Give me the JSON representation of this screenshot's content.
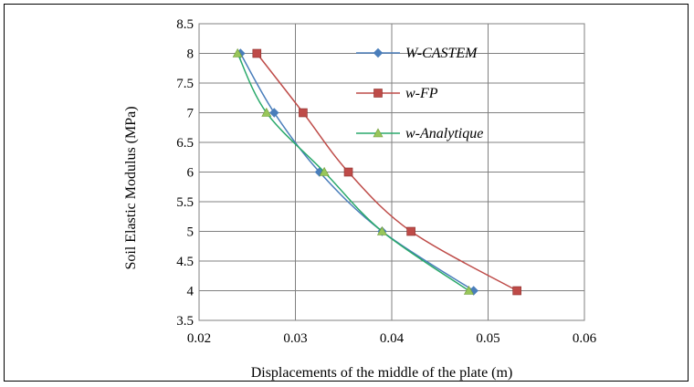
{
  "chart_data": {
    "type": "line",
    "title": "",
    "xlabel": "Displacements of the middle  of the plate (m)",
    "ylabel": "Soil Elastic  Modulus  (MPa)",
    "xlim": [
      0.02,
      0.06
    ],
    "ylim": [
      3.5,
      8.5
    ],
    "xticks": [
      "0.02",
      "0.03",
      "0.04",
      "0.05",
      "0.06"
    ],
    "yticks": [
      "3.5",
      "4",
      "4.5",
      "5",
      "5.5",
      "6",
      "6.5",
      "7",
      "7.5",
      "8",
      "8.5"
    ],
    "grid": true,
    "legend_position": "top-right inside plot",
    "series": [
      {
        "name": "W-CASTEM",
        "color": "#4a7ebb",
        "marker": "diamond",
        "points": [
          [
            0.0243,
            8
          ],
          [
            0.0278,
            7
          ],
          [
            0.0325,
            6
          ],
          [
            0.039,
            5
          ],
          [
            0.0485,
            4
          ]
        ]
      },
      {
        "name": "w-FP",
        "color": "#be4b48",
        "marker": "square",
        "points": [
          [
            0.026,
            8
          ],
          [
            0.0308,
            7
          ],
          [
            0.0355,
            6
          ],
          [
            0.042,
            5
          ],
          [
            0.053,
            4
          ]
        ]
      },
      {
        "name": "w-Analytique",
        "color": "#98c65a",
        "line_color": "#2aa96b",
        "marker": "triangle",
        "points": [
          [
            0.024,
            8
          ],
          [
            0.027,
            7
          ],
          [
            0.033,
            6
          ],
          [
            0.039,
            5
          ],
          [
            0.048,
            4
          ]
        ]
      }
    ]
  }
}
